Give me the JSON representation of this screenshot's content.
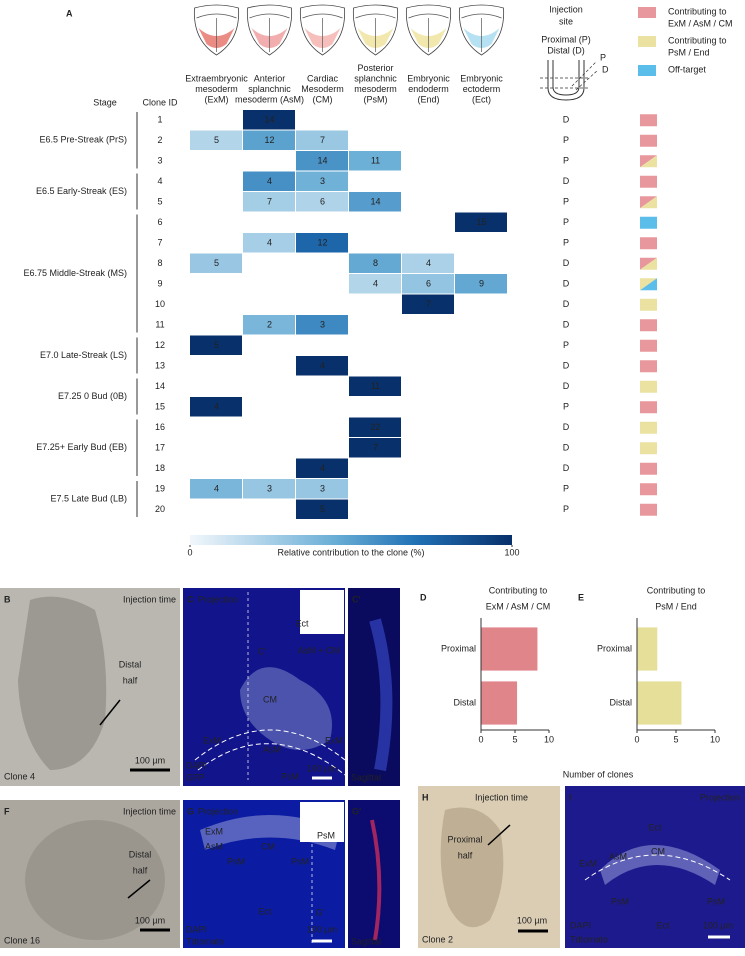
{
  "panel_a": {
    "label": "A",
    "stage_header": "Stage",
    "clone_header": "Clone ID",
    "columns": [
      {
        "lines": [
          "Extraembryonic",
          "mesoderm",
          "(ExM)"
        ],
        "icon_color": "#e8786e"
      },
      {
        "lines": [
          "Anterior",
          "splanchnic",
          "mesoderm (AsM)"
        ],
        "icon_color": "#f0a0a0"
      },
      {
        "lines": [
          "Cardiac",
          "Mesoderm",
          "(CM)"
        ],
        "icon_color": "#f4b4b0"
      },
      {
        "lines": [
          "Posterior",
          "splanchnic",
          "mesoderm",
          "(PsM)"
        ],
        "icon_color": "#f0e4a0"
      },
      {
        "lines": [
          "Embryonic",
          "endoderm",
          "(End)"
        ],
        "icon_color": "#f0e4a0"
      },
      {
        "lines": [
          "Embryonic",
          "ectoderm",
          "(Ect)"
        ],
        "icon_color": "#a8dcf0"
      }
    ],
    "injection": {
      "title": [
        "Injection",
        "site"
      ],
      "proximal": "Proximal (P)",
      "distal": "Distal (D)",
      "p": "P",
      "d": "D"
    },
    "legend": [
      {
        "lines": [
          "Contributing to",
          "ExM / AsM / CM"
        ],
        "color": "#e8979c"
      },
      {
        "lines": [
          "Contributing to",
          "PsM / End"
        ],
        "color": "#ebe2a2"
      },
      {
        "lines": [
          "Off-target"
        ],
        "color": "#5bbde9"
      }
    ],
    "stages": [
      {
        "label": "E6.5  Pre-Streak (PrS)",
        "clones": [
          {
            "id": 1,
            "values": [
              null,
              14,
              null,
              null,
              null,
              null
            ],
            "site": "D",
            "swatch": [
              0
            ]
          },
          {
            "id": 2,
            "values": [
              5,
              12,
              7,
              null,
              null,
              null
            ],
            "site": "P",
            "swatch": [
              0
            ]
          },
          {
            "id": 3,
            "values": [
              null,
              null,
              14,
              11,
              null,
              null
            ],
            "site": "P",
            "swatch": [
              0,
              1
            ]
          }
        ]
      },
      {
        "label": "E6.5 Early-Streak (ES)",
        "clones": [
          {
            "id": 4,
            "values": [
              null,
              4,
              3,
              null,
              null,
              null
            ],
            "site": "D",
            "swatch": [
              0
            ]
          },
          {
            "id": 5,
            "values": [
              null,
              7,
              6,
              14,
              null,
              null
            ],
            "site": "P",
            "swatch": [
              0,
              1
            ]
          }
        ]
      },
      {
        "label": "E6.75 Middle-Streak (MS)",
        "clones": [
          {
            "id": 6,
            "values": [
              null,
              null,
              null,
              null,
              null,
              15
            ],
            "site": "P",
            "swatch": [
              2
            ]
          },
          {
            "id": 7,
            "values": [
              null,
              4,
              12,
              null,
              null,
              null
            ],
            "site": "P",
            "swatch": [
              0
            ]
          },
          {
            "id": 8,
            "values": [
              5,
              null,
              null,
              8,
              4,
              null
            ],
            "site": "D",
            "swatch": [
              0,
              1
            ]
          },
          {
            "id": 9,
            "values": [
              null,
              null,
              null,
              4,
              6,
              9
            ],
            "site": "D",
            "swatch": [
              1,
              2
            ]
          },
          {
            "id": 10,
            "values": [
              null,
              null,
              null,
              null,
              7,
              null
            ],
            "site": "D",
            "swatch": [
              1
            ]
          },
          {
            "id": 11,
            "values": [
              null,
              2,
              3,
              null,
              null,
              null
            ],
            "site": "D",
            "swatch": [
              0
            ]
          }
        ]
      },
      {
        "label": "E7.0 Late-Streak (LS)",
        "clones": [
          {
            "id": 12,
            "values": [
              5,
              null,
              null,
              null,
              null,
              null
            ],
            "site": "P",
            "swatch": [
              0
            ]
          },
          {
            "id": 13,
            "values": [
              null,
              null,
              4,
              null,
              null,
              null
            ],
            "site": "D",
            "swatch": [
              0
            ]
          }
        ]
      },
      {
        "label": "E7.25 0 Bud (0B)",
        "clones": [
          {
            "id": 14,
            "values": [
              null,
              null,
              null,
              11,
              null,
              null
            ],
            "site": "D",
            "swatch": [
              1
            ]
          },
          {
            "id": 15,
            "values": [
              4,
              null,
              null,
              null,
              null,
              null
            ],
            "site": "P",
            "swatch": [
              0
            ]
          }
        ]
      },
      {
        "label": "E7.25+ Early Bud (EB)",
        "clones": [
          {
            "id": 16,
            "values": [
              null,
              null,
              null,
              22,
              null,
              null
            ],
            "site": "D",
            "swatch": [
              1
            ]
          },
          {
            "id": 17,
            "values": [
              null,
              null,
              null,
              7,
              null,
              null
            ],
            "site": "D",
            "swatch": [
              1
            ]
          },
          {
            "id": 18,
            "values": [
              null,
              null,
              4,
              null,
              null,
              null
            ],
            "site": "D",
            "swatch": [
              0
            ]
          }
        ]
      },
      {
        "label": "E7.5 Late Bud (LB)",
        "clones": [
          {
            "id": 19,
            "values": [
              4,
              3,
              3,
              null,
              null,
              null
            ],
            "site": "P",
            "swatch": [
              0
            ]
          },
          {
            "id": 20,
            "values": [
              null,
              null,
              5,
              null,
              null,
              null
            ],
            "site": "P",
            "swatch": [
              0
            ]
          }
        ]
      }
    ],
    "colorbar": {
      "label": "Relative contribution to the clone (%)",
      "range": [
        0,
        100
      ],
      "ticks": [
        0,
        100
      ]
    }
  },
  "panel_d": {
    "label": "D",
    "title": [
      "Contributing to",
      "ExM / AsM / CM"
    ],
    "categories": [
      "Proximal",
      "Distal"
    ],
    "values": [
      8.3,
      5.3
    ],
    "color": "#e0868b",
    "xlim": [
      0,
      10
    ],
    "xticks": [
      0,
      5,
      10
    ]
  },
  "panel_e": {
    "label": "E",
    "title": [
      "Contributing to",
      "PsM / End"
    ],
    "categories": [
      "Proximal",
      "Distal"
    ],
    "values": [
      2.6,
      5.7
    ],
    "color": "#e6df9a",
    "xlim": [
      0,
      10
    ],
    "xticks": [
      0,
      5,
      10
    ]
  },
  "bar_xlabel": "Number of clones",
  "images": [
    {
      "label": "B",
      "texts": [
        "Injection time",
        "Distal",
        "half",
        "Clone 4",
        "100 µm"
      ]
    },
    {
      "label": "C",
      "texts": [
        "Projection",
        "Ect",
        "C′",
        "AsM + CM",
        "CM",
        "ExM",
        "AsM",
        "ExM",
        "PsM",
        "DAPI",
        "GFP",
        "100 µm"
      ]
    },
    {
      "label": "C′",
      "texts": [
        "Sagittal"
      ]
    },
    {
      "label": "F",
      "texts": [
        "Injection time",
        "Distal",
        "half",
        "Clone 16",
        "100 µm"
      ]
    },
    {
      "label": "G",
      "texts": [
        "Projection",
        "ExM",
        "AsM",
        "CM",
        "PsM",
        "PsM",
        "PsM",
        "Ect",
        "G′",
        "DAPI",
        "Tdtomato",
        "100 µm"
      ]
    },
    {
      "label": "G′",
      "texts": [
        "Sagittal"
      ]
    },
    {
      "label": "H",
      "texts": [
        "Injection time",
        "Proximal",
        "half",
        "Clone 2",
        "100 µm"
      ]
    },
    {
      "label": "I",
      "texts": [
        "Projection",
        "Ect",
        "CM",
        "ExM",
        "AsM",
        "PsM",
        "PsM",
        "Ect",
        "DAPI",
        "Tdtomato",
        "100 µm"
      ]
    }
  ]
}
